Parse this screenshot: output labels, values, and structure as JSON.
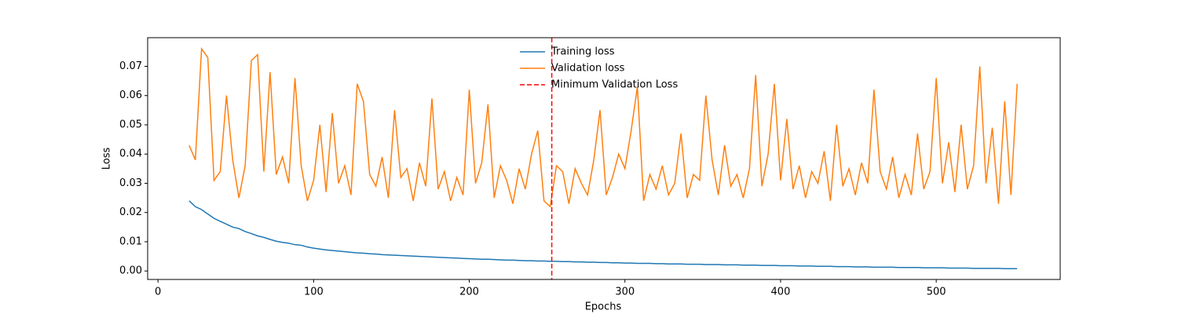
{
  "chart_data": {
    "type": "line",
    "xlabel": "Epochs",
    "ylabel": "Loss",
    "x": [
      20,
      24,
      28,
      32,
      36,
      40,
      44,
      48,
      52,
      56,
      60,
      64,
      68,
      72,
      76,
      80,
      84,
      88,
      92,
      96,
      100,
      104,
      108,
      112,
      116,
      120,
      124,
      128,
      132,
      136,
      140,
      144,
      148,
      152,
      156,
      160,
      164,
      168,
      172,
      176,
      180,
      184,
      188,
      192,
      196,
      200,
      204,
      208,
      212,
      216,
      220,
      224,
      228,
      232,
      236,
      240,
      244,
      248,
      252,
      256,
      260,
      264,
      268,
      272,
      276,
      280,
      284,
      288,
      292,
      296,
      300,
      304,
      308,
      312,
      316,
      320,
      324,
      328,
      332,
      336,
      340,
      344,
      348,
      352,
      356,
      360,
      364,
      368,
      372,
      376,
      380,
      384,
      388,
      392,
      396,
      400,
      404,
      408,
      412,
      416,
      420,
      424,
      428,
      432,
      436,
      440,
      444,
      448,
      452,
      456,
      460,
      464,
      468,
      472,
      476,
      480,
      484,
      488,
      492,
      496,
      500,
      504,
      508,
      512,
      516,
      520,
      524,
      528,
      532,
      536,
      540,
      544,
      548,
      552
    ],
    "series": [
      {
        "name": "Training loss",
        "color": "#1f77b4",
        "values": [
          0.024,
          0.022,
          0.021,
          0.0195,
          0.018,
          0.017,
          0.016,
          0.015,
          0.0145,
          0.0135,
          0.0128,
          0.012,
          0.0115,
          0.0108,
          0.0102,
          0.0098,
          0.0095,
          0.009,
          0.0088,
          0.0082,
          0.0078,
          0.0075,
          0.0072,
          0.007,
          0.0068,
          0.0066,
          0.0064,
          0.0062,
          0.0061,
          0.0059,
          0.0058,
          0.0056,
          0.0055,
          0.0054,
          0.0053,
          0.0052,
          0.0051,
          0.005,
          0.0049,
          0.0048,
          0.0047,
          0.0046,
          0.0045,
          0.0044,
          0.0043,
          0.0042,
          0.0041,
          0.004,
          0.004,
          0.0039,
          0.0038,
          0.0037,
          0.0037,
          0.0036,
          0.0035,
          0.0035,
          0.0034,
          0.0034,
          0.0033,
          0.0033,
          0.0032,
          0.0032,
          0.0031,
          0.0031,
          0.003,
          0.003,
          0.0029,
          0.0029,
          0.0028,
          0.0028,
          0.0027,
          0.0027,
          0.0026,
          0.0026,
          0.0026,
          0.0025,
          0.0025,
          0.0024,
          0.0024,
          0.0024,
          0.0023,
          0.0023,
          0.0023,
          0.0022,
          0.0022,
          0.0022,
          0.0021,
          0.0021,
          0.0021,
          0.002,
          0.002,
          0.002,
          0.0019,
          0.0019,
          0.0019,
          0.0018,
          0.0018,
          0.0018,
          0.0017,
          0.0017,
          0.0017,
          0.0016,
          0.0016,
          0.0016,
          0.0015,
          0.0015,
          0.0015,
          0.0014,
          0.0014,
          0.0014,
          0.0013,
          0.0013,
          0.0013,
          0.0013,
          0.0012,
          0.0012,
          0.0012,
          0.0012,
          0.0011,
          0.0011,
          0.0011,
          0.0011,
          0.001,
          0.001,
          0.001,
          0.001,
          0.0009,
          0.0009,
          0.0009,
          0.0009,
          0.0009,
          0.0008,
          0.0008,
          0.0008
        ]
      },
      {
        "name": "Validation loss",
        "color": "#ff7f0e",
        "values": [
          0.043,
          0.038,
          0.076,
          0.073,
          0.031,
          0.034,
          0.06,
          0.038,
          0.025,
          0.036,
          0.072,
          0.074,
          0.034,
          0.068,
          0.033,
          0.039,
          0.03,
          0.066,
          0.036,
          0.024,
          0.031,
          0.05,
          0.027,
          0.054,
          0.03,
          0.036,
          0.026,
          0.064,
          0.058,
          0.033,
          0.029,
          0.039,
          0.025,
          0.055,
          0.032,
          0.035,
          0.024,
          0.037,
          0.029,
          0.059,
          0.028,
          0.034,
          0.024,
          0.032,
          0.026,
          0.062,
          0.03,
          0.037,
          0.057,
          0.025,
          0.036,
          0.031,
          0.023,
          0.035,
          0.028,
          0.04,
          0.048,
          0.024,
          0.022,
          0.036,
          0.034,
          0.023,
          0.035,
          0.03,
          0.026,
          0.038,
          0.055,
          0.026,
          0.032,
          0.04,
          0.035,
          0.048,
          0.063,
          0.024,
          0.033,
          0.028,
          0.036,
          0.026,
          0.03,
          0.047,
          0.025,
          0.033,
          0.031,
          0.06,
          0.038,
          0.026,
          0.043,
          0.029,
          0.033,
          0.025,
          0.035,
          0.067,
          0.029,
          0.04,
          0.064,
          0.031,
          0.052,
          0.028,
          0.036,
          0.025,
          0.034,
          0.03,
          0.041,
          0.024,
          0.05,
          0.029,
          0.035,
          0.026,
          0.037,
          0.03,
          0.062,
          0.034,
          0.028,
          0.039,
          0.025,
          0.033,
          0.026,
          0.047,
          0.028,
          0.034,
          0.066,
          0.03,
          0.044,
          0.027,
          0.05,
          0.028,
          0.036,
          0.07,
          0.03,
          0.049,
          0.023,
          0.058,
          0.026,
          0.064
        ]
      }
    ],
    "vline": {
      "name": "Minimum Validation Loss",
      "x": 253,
      "color": "#ff0000"
    },
    "xlim": [
      -6.65,
      579.65
    ],
    "xticks": [
      0,
      100,
      200,
      300,
      400,
      500
    ],
    "ylim": [
      -0.0029,
      0.0798
    ],
    "yticks": [
      {
        "value": 0,
        "label": "0.00"
      },
      {
        "value": 0.01,
        "label": "0.01"
      },
      {
        "value": 0.02,
        "label": "0.02"
      },
      {
        "value": 0.03,
        "label": "0.03"
      },
      {
        "value": 0.04,
        "label": "0.04"
      },
      {
        "value": 0.05,
        "label": "0.05"
      },
      {
        "value": 0.06,
        "label": "0.06"
      },
      {
        "value": 0.07,
        "label": "0.07"
      }
    ],
    "legend": "upper center"
  }
}
